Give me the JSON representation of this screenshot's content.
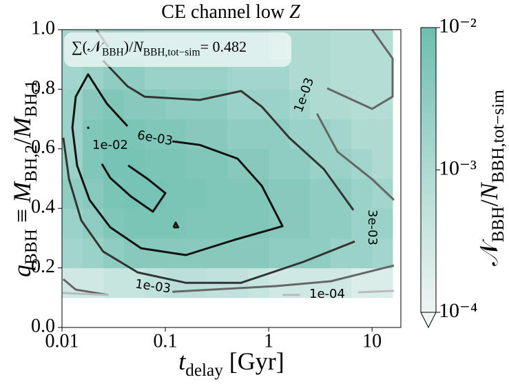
{
  "chart_data": {
    "type": "heatmap",
    "title": [
      {
        "text": "CE channel low "
      },
      {
        "text": "Z",
        "italic": true
      }
    ],
    "xlabel": [
      {
        "text": "t",
        "italic": true
      },
      {
        "text": "delay",
        "sub": true
      },
      {
        "text": " [Gyr]"
      }
    ],
    "ylabel": [
      {
        "text": "q",
        "italic": true
      },
      {
        "text": "BBH",
        "sub": true
      },
      {
        "text": " ≡ "
      },
      {
        "text": "M",
        "italic": true
      },
      {
        "text": "BH,2",
        "sub": true
      },
      {
        "text": "/"
      },
      {
        "text": "M",
        "italic": true
      },
      {
        "text": "BH,1",
        "sub": true
      }
    ],
    "annotation": [
      {
        "text": "∑(𝒩"
      },
      {
        "text": "BBH",
        "sub": true
      },
      {
        "text": ")/"
      },
      {
        "text": "N",
        "italic": true
      },
      {
        "text": "BBH,tot−sim",
        "sub": true
      },
      {
        "text": "= 0.482"
      }
    ],
    "xscale": "log",
    "xlim": [
      0.01,
      19
    ],
    "ylim": [
      0,
      1
    ],
    "xticks": [
      0.01,
      0.1,
      1,
      10
    ],
    "yticks": [
      {
        "value": 0,
        "label": "0.0"
      },
      0.2,
      0.4,
      0.6,
      0.8,
      {
        "value": 1,
        "label": "1.0"
      }
    ],
    "x_bins": [
      0.01,
      0.0158,
      0.0251,
      0.0398,
      0.0631,
      0.1,
      0.158,
      0.251,
      0.398,
      0.631,
      1,
      1.58,
      2.51,
      3.98,
      6.31,
      10,
      15.8
    ],
    "y_bins": [
      0.1,
      0.2,
      0.3,
      0.4,
      0.5,
      0.6,
      0.7,
      0.8,
      0.9,
      1.0
    ],
    "z": [
      [
        0.0003,
        0.0003,
        0.0004,
        0.0004,
        0.0005,
        0.0006,
        0.0006,
        0.0005,
        0.0005,
        0.0004,
        0.0003,
        0.0003,
        0.0003,
        0.0003,
        0.0002,
        0.0002
      ],
      [
        0.0015,
        0.002,
        0.003,
        0.004,
        0.004,
        0.004,
        0.004,
        0.004,
        0.004,
        0.004,
        0.003,
        0.003,
        0.003,
        0.002,
        0.002,
        0.0015
      ],
      [
        0.002,
        0.003,
        0.005,
        0.006,
        0.006,
        0.006,
        0.005,
        0.005,
        0.005,
        0.005,
        0.004,
        0.004,
        0.003,
        0.003,
        0.002,
        0.002
      ],
      [
        0.003,
        0.004,
        0.006,
        0.007,
        0.007,
        0.006,
        0.006,
        0.005,
        0.005,
        0.005,
        0.004,
        0.004,
        0.003,
        0.003,
        0.002,
        0.0015
      ],
      [
        0.002,
        0.005,
        0.007,
        0.007,
        0.006,
        0.006,
        0.005,
        0.005,
        0.004,
        0.004,
        0.003,
        0.003,
        0.002,
        0.002,
        0.0015,
        0.001
      ],
      [
        0.002,
        0.005,
        0.006,
        0.006,
        0.005,
        0.005,
        0.004,
        0.004,
        0.003,
        0.003,
        0.003,
        0.002,
        0.002,
        0.0015,
        0.001,
        0.001
      ],
      [
        0.002,
        0.004,
        0.005,
        0.004,
        0.004,
        0.003,
        0.003,
        0.003,
        0.002,
        0.002,
        0.002,
        0.0015,
        0.001,
        0.001,
        0.0008,
        0.0008
      ],
      [
        0.0015,
        0.002,
        0.003,
        0.003,
        0.002,
        0.002,
        0.002,
        0.002,
        0.0015,
        0.0015,
        0.0015,
        0.001,
        0.001,
        0.0008,
        0.0008,
        0.0008
      ],
      [
        0.0015,
        0.0015,
        0.002,
        0.002,
        0.0015,
        0.0015,
        0.0015,
        0.0015,
        0.0015,
        0.0015,
        0.001,
        0.001,
        0.001,
        0.0008,
        0.0008,
        0.0008
      ]
    ],
    "colorbar": {
      "scale": "log",
      "lim": [
        0.0001,
        0.01
      ],
      "ticks": [
        {
          "value": 0.01,
          "label": "10⁻²"
        },
        {
          "value": 0.001,
          "label": "10⁻³"
        },
        {
          "value": 0.0001,
          "label": "10⁻⁴"
        }
      ],
      "colors": [
        "#eef5f3",
        "#6dbfb0"
      ],
      "label": [
        {
          "text": "𝒩"
        },
        {
          "text": "BBH",
          "sub": true
        },
        {
          "text": "/"
        },
        {
          "text": "N",
          "italic": true
        },
        {
          "text": "BBH,tot−sim",
          "sub": true
        }
      ]
    },
    "contours": [
      {
        "label": "1e-02",
        "color": "#111111",
        "x": [
          0.0243,
          0.0293,
          0.0464,
          0.0758,
          0.1,
          0.068,
          0.0437,
          null,
          0.0179,
          0.018,
          null,
          0.12,
          0.126,
          0.133,
          0.12
        ],
        "y": [
          0.549,
          0.502,
          0.44,
          0.389,
          0.451,
          0.498,
          0.544,
          null,
          0.674,
          0.667,
          null,
          0.336,
          0.352,
          0.336,
          0.336
        ]
      },
      {
        "label": "6e-03",
        "color": "#111111",
        "x": [
          0.117,
          0.215,
          0.5,
          0.86,
          1.36,
          0.464,
          0.158,
          0.0583,
          0.0293,
          0.0185,
          0.014,
          0.0126,
          0.0136,
          0.0179,
          0.0271,
          0.043
        ],
        "y": [
          0.625,
          0.613,
          0.567,
          0.475,
          0.34,
          0.294,
          0.243,
          0.266,
          0.336,
          0.428,
          0.544,
          0.671,
          0.775,
          0.85,
          0.752,
          0.676
        ]
      },
      {
        "label": "3e-03",
        "color": "#333333",
        "x": [
          0.025,
          0.043,
          0.063,
          0.215,
          0.54,
          0.86,
          1.58,
          3.41,
          6.6,
          null,
          0.0103,
          0.0117,
          0.0154,
          0.025,
          0.054,
          0.158,
          0.54,
          2.15,
          6.8
        ],
        "y": [
          0.896,
          0.81,
          0.775,
          0.764,
          0.794,
          0.741,
          0.637,
          0.532,
          0.394,
          null,
          0.637,
          0.498,
          0.359,
          0.255,
          0.185,
          0.15,
          0.15,
          0.22,
          0.289
        ]
      },
      {
        "label": "1e-03",
        "color": "#666666",
        "x": [
          0.0215,
          0.028,
          null,
          10,
          15.8,
          15.8,
          10,
          3.68,
          null,
          2.93,
          4.64,
          10,
          16.3,
          null,
          0.0103,
          0.0136,
          0.028,
          null,
          0.117,
          1.17,
          3.98,
          16.3
        ],
        "y": [
          1.0,
          0.942,
          null,
          1.0,
          0.903,
          0.775,
          0.734,
          0.803,
          null,
          0.718,
          0.59,
          0.498,
          0.428,
          null,
          0.162,
          0.127,
          0.109,
          null,
          0.12,
          0.139,
          0.155,
          0.208
        ]
      },
      {
        "label": "1e-04",
        "color": "#bbbbbb",
        "x": [
          0.01,
          0.028,
          null,
          1.36,
          2.0,
          null,
          7.36,
          16.3
        ],
        "y": [
          0.116,
          0.109,
          null,
          0.109,
          0.109,
          null,
          0.118,
          0.123
        ]
      }
    ]
  }
}
